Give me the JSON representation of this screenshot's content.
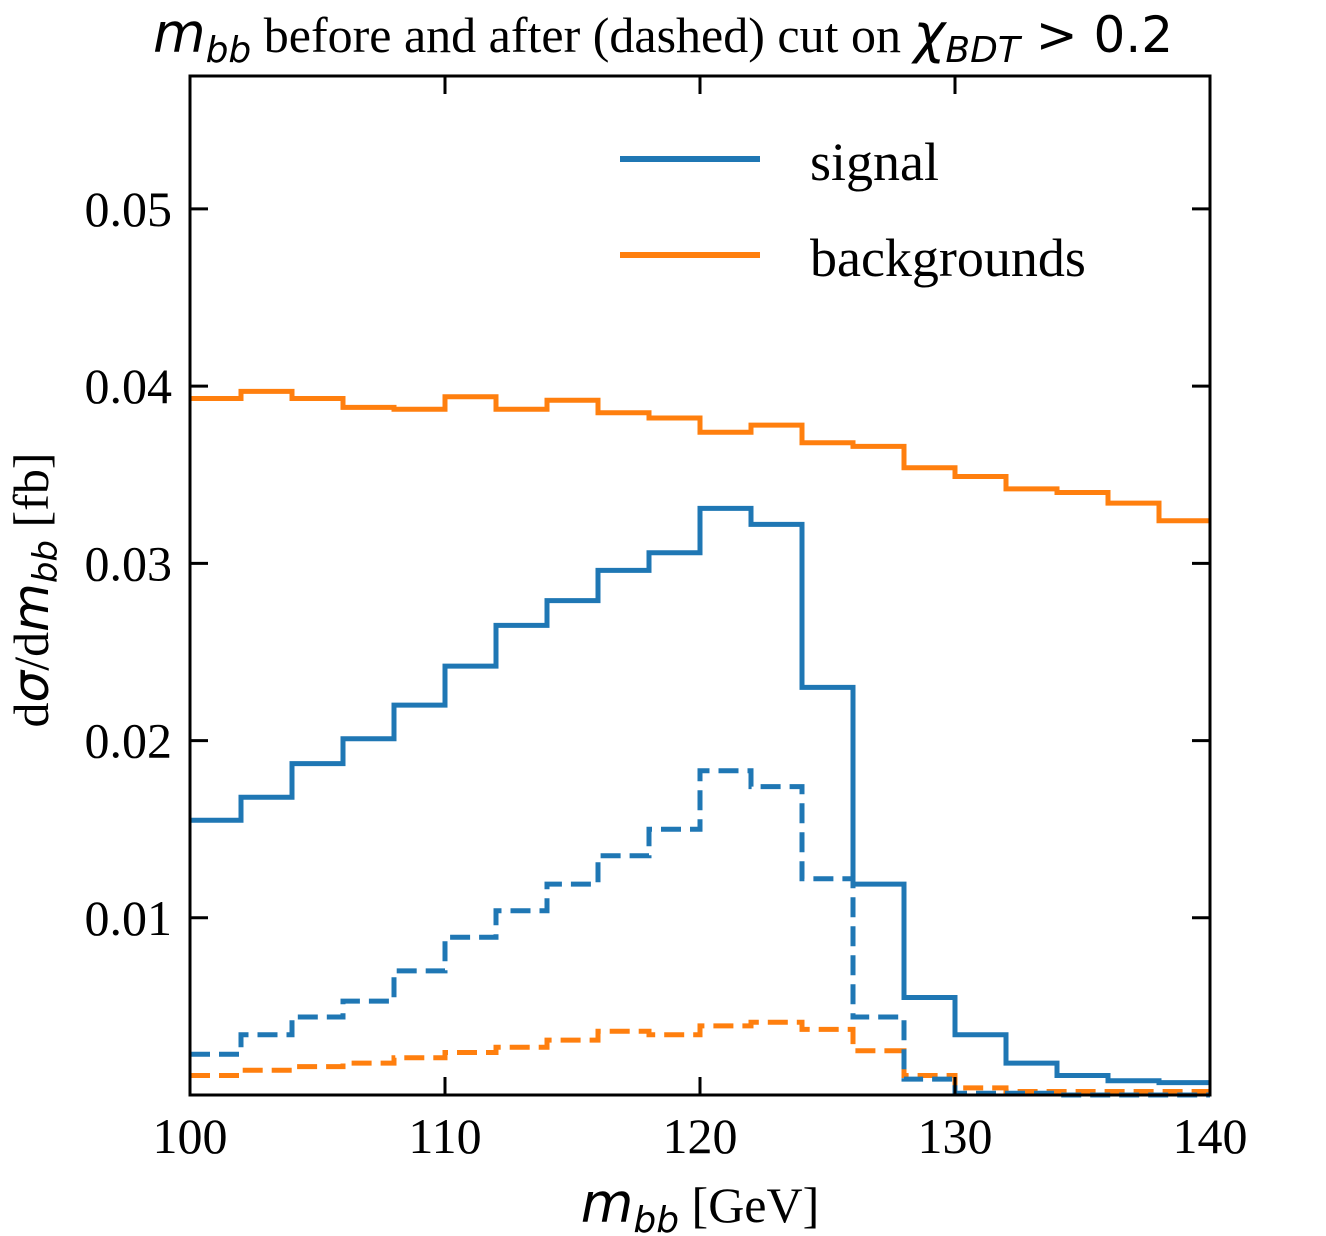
{
  "title": {
    "prefix_var": "m",
    "prefix_sub": "bb",
    "text": " before and after (dashed) cut on ",
    "chi": "χ",
    "chi_sub": "BDT",
    "suffix": " > 0.2"
  },
  "xlabel": {
    "var": "m",
    "sub": "bb",
    "unit": " [GeV]"
  },
  "ylabel": {
    "d1": "d",
    "sigma": "σ",
    "slash": "/d",
    "var": "m",
    "sub": "bb",
    "unit": " [fb]"
  },
  "chart_data": {
    "type": "step",
    "title": "m_bb before and after (dashed) cut on χ_BDT > 0.2",
    "xlabel": "m_bb [GeV]",
    "ylabel": "dσ/dm_bb [fb]",
    "xlim": [
      100,
      140
    ],
    "ylim": [
      0,
      0.0575
    ],
    "xticks": [
      100,
      110,
      120,
      130,
      140
    ],
    "yticks": [
      0.01,
      0.02,
      0.03,
      0.04,
      0.05
    ],
    "xtick_labels": [
      "100",
      "110",
      "120",
      "130",
      "140"
    ],
    "ytick_labels": [
      "0.01",
      "0.02",
      "0.03",
      "0.04",
      "0.05"
    ],
    "bin_edges": [
      100,
      102,
      104,
      106,
      108,
      110,
      112,
      114,
      116,
      118,
      120,
      122,
      124,
      126,
      128,
      130,
      132,
      134,
      136,
      138,
      140
    ],
    "legend_position": "top-right",
    "series": [
      {
        "name": "signal",
        "color": "#1f77b4",
        "style": "solid",
        "legend": true,
        "values": [
          0.0155,
          0.0168,
          0.0187,
          0.0201,
          0.022,
          0.0242,
          0.0265,
          0.0279,
          0.0296,
          0.0306,
          0.0331,
          0.0322,
          0.023,
          0.0119,
          0.0055,
          0.0034,
          0.0018,
          0.0011,
          0.0008,
          0.0007
        ]
      },
      {
        "name": "backgrounds",
        "color": "#ff7f0e",
        "style": "solid",
        "legend": true,
        "values": [
          0.0393,
          0.0397,
          0.0393,
          0.0388,
          0.0387,
          0.0394,
          0.0387,
          0.0392,
          0.0385,
          0.0382,
          0.0374,
          0.0378,
          0.0368,
          0.0366,
          0.0354,
          0.0349,
          0.0342,
          0.034,
          0.0334,
          0.0324
        ]
      },
      {
        "name": "signal (after cut)",
        "color": "#1f77b4",
        "style": "dashed",
        "legend": false,
        "values": [
          0.0023,
          0.0034,
          0.0044,
          0.0053,
          0.007,
          0.0089,
          0.0104,
          0.0119,
          0.0135,
          0.015,
          0.0183,
          0.0174,
          0.0122,
          0.0044,
          0.0009,
          0.0001,
          0.0001,
          0.0,
          0.0,
          0.0
        ]
      },
      {
        "name": "backgrounds (after cut)",
        "color": "#ff7f0e",
        "style": "dashed",
        "legend": false,
        "values": [
          0.0011,
          0.0014,
          0.0016,
          0.0018,
          0.0021,
          0.0024,
          0.0027,
          0.0031,
          0.0036,
          0.0034,
          0.0039,
          0.0041,
          0.0037,
          0.0025,
          0.0011,
          0.0004,
          0.0002,
          0.0002,
          0.0002,
          0.0002
        ]
      }
    ]
  }
}
